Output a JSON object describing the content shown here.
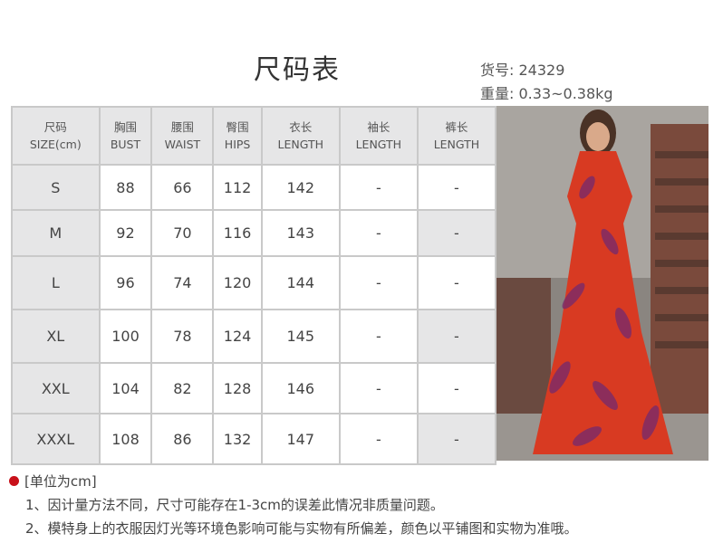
{
  "title": "尺码表",
  "meta": {
    "item_no_label": "货号:",
    "item_no": "24329",
    "weight_label": "重量:",
    "weight": "0.33~0.38kg"
  },
  "table": {
    "headers": [
      {
        "cn": "尺码",
        "en": "SIZE(cm)"
      },
      {
        "cn": "胸围",
        "en": "BUST"
      },
      {
        "cn": "腰围",
        "en": "WAIST"
      },
      {
        "cn": "臀围",
        "en": "HIPS"
      },
      {
        "cn": "衣长",
        "en": "LENGTH"
      },
      {
        "cn": "袖长",
        "en": "LENGTH"
      },
      {
        "cn": "裤长",
        "en": "LENGTH"
      }
    ],
    "rows": [
      [
        "S",
        "88",
        "66",
        "112",
        "142",
        "-",
        "-"
      ],
      [
        "M",
        "92",
        "70",
        "116",
        "143",
        "-",
        "-"
      ],
      [
        "L",
        "96",
        "74",
        "120",
        "144",
        "-",
        "-"
      ],
      [
        "XL",
        "100",
        "78",
        "124",
        "145",
        "-",
        "-"
      ],
      [
        "XXL",
        "104",
        "82",
        "128",
        "146",
        "-",
        "-"
      ],
      [
        "XXXL",
        "108",
        "86",
        "132",
        "147",
        "-",
        "-"
      ]
    ]
  },
  "notes": {
    "unit": "[单位为cm]",
    "items": [
      "1、因计量方法不同，尺寸可能存在1-3cm的误差此情况非质量问题。",
      "2、模特身上的衣服因灯光等环境色影响可能与实物有所偏差，颜色以平铺图和实物为准哦。"
    ],
    "bullet_color": "#c8101a"
  },
  "photo": {
    "subject": "model in red floral maxi dress",
    "dress_color": "#d83a22",
    "print_color": "#7a2a6a"
  }
}
